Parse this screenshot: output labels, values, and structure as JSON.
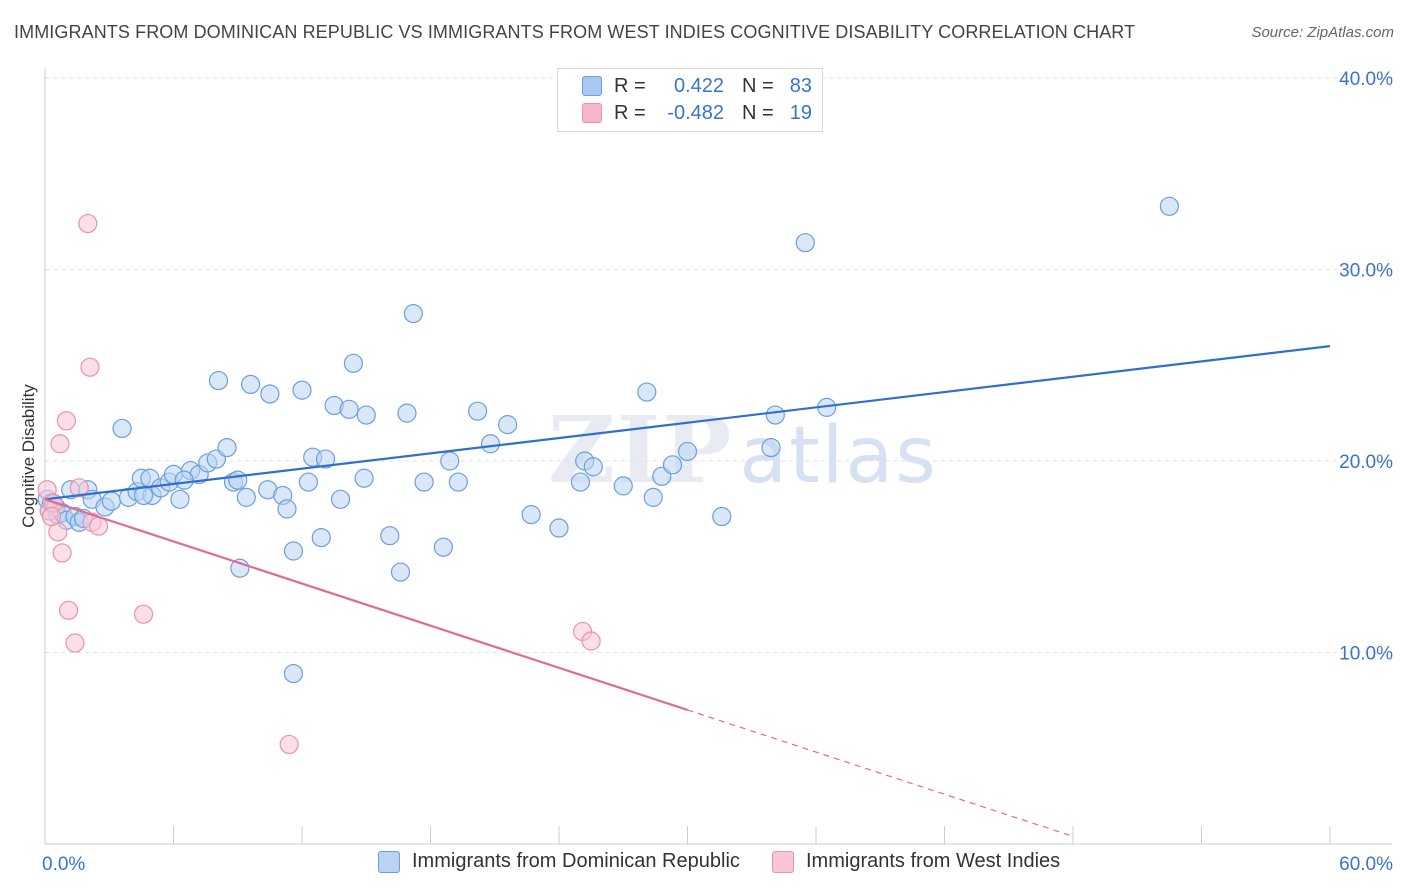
{
  "title": "IMMIGRANTS FROM DOMINICAN REPUBLIC VS IMMIGRANTS FROM WEST INDIES COGNITIVE DISABILITY CORRELATION CHART",
  "source": "Source: ZipAtlas.com",
  "watermark": {
    "zip": "ZIP",
    "atlas": "atlas"
  },
  "legend": {
    "rows": [
      {
        "r_label": "R =",
        "r_value": "0.422",
        "n_label": "N =",
        "n_value": "83",
        "color": "#a8c8f0"
      },
      {
        "r_label": "R =",
        "r_value": "-0.482",
        "n_label": "N =",
        "n_value": "19",
        "color": "#f7b8cb"
      }
    ]
  },
  "chart_data": {
    "type": "scatter",
    "title": "IMMIGRANTS FROM DOMINICAN REPUBLIC VS IMMIGRANTS FROM WEST INDIES COGNITIVE DISABILITY CORRELATION CHART",
    "xlabel": "",
    "ylabel": "Cognitive Disability",
    "xlim": [
      0,
      60
    ],
    "ylim": [
      0,
      40
    ],
    "x_tick_labels": [
      "0.0%",
      "60.0%"
    ],
    "y_tick_labels": [
      "10.0%",
      "20.0%",
      "30.0%",
      "40.0%"
    ],
    "y_ticks": [
      10,
      20,
      30,
      40
    ],
    "grid": true,
    "legend_position": "bottom",
    "series": [
      {
        "name": "Immigrants from Dominican Republic",
        "color": "#6a9fe0",
        "fill": "#b9d3f3",
        "trend": {
          "x": [
            0,
            60
          ],
          "y": [
            18.0,
            26.0
          ],
          "color": "#2f6fd0"
        },
        "points": [
          [
            0.1,
            18.0
          ],
          [
            0.2,
            17.4
          ],
          [
            0.3,
            17.8
          ],
          [
            0.5,
            17.6
          ],
          [
            0.6,
            17.2
          ],
          [
            0.8,
            17.3
          ],
          [
            1.0,
            16.9
          ],
          [
            1.2,
            18.5
          ],
          [
            1.4,
            17.1
          ],
          [
            1.6,
            16.8
          ],
          [
            2.0,
            18.5
          ],
          [
            2.2,
            18.0
          ],
          [
            2.8,
            17.6
          ],
          [
            3.1,
            17.9
          ],
          [
            3.6,
            21.7
          ],
          [
            3.9,
            18.1
          ],
          [
            4.3,
            18.4
          ],
          [
            4.5,
            19.1
          ],
          [
            4.9,
            19.1
          ],
          [
            5.0,
            18.2
          ],
          [
            5.4,
            18.6
          ],
          [
            5.8,
            18.9
          ],
          [
            6.0,
            19.3
          ],
          [
            6.3,
            18.0
          ],
          [
            6.8,
            19.5
          ],
          [
            7.2,
            19.3
          ],
          [
            7.6,
            19.9
          ],
          [
            8.0,
            20.1
          ],
          [
            8.1,
            24.2
          ],
          [
            8.5,
            20.7
          ],
          [
            8.8,
            18.9
          ],
          [
            9.0,
            19.0
          ],
          [
            9.1,
            14.4
          ],
          [
            9.4,
            18.1
          ],
          [
            9.6,
            24.0
          ],
          [
            10.4,
            18.5
          ],
          [
            10.5,
            23.5
          ],
          [
            11.1,
            18.2
          ],
          [
            11.3,
            17.5
          ],
          [
            11.6,
            15.3
          ],
          [
            12.0,
            23.7
          ],
          [
            12.3,
            18.9
          ],
          [
            12.5,
            20.2
          ],
          [
            12.9,
            16.0
          ],
          [
            13.1,
            20.1
          ],
          [
            13.5,
            22.9
          ],
          [
            13.8,
            18.0
          ],
          [
            14.2,
            22.7
          ],
          [
            14.4,
            25.1
          ],
          [
            14.9,
            19.1
          ],
          [
            15.0,
            22.4
          ],
          [
            16.1,
            16.1
          ],
          [
            16.6,
            14.2
          ],
          [
            16.9,
            22.5
          ],
          [
            17.2,
            27.7
          ],
          [
            17.7,
            18.9
          ],
          [
            18.6,
            15.5
          ],
          [
            18.9,
            20.0
          ],
          [
            19.3,
            18.9
          ],
          [
            20.2,
            22.6
          ],
          [
            20.8,
            20.9
          ],
          [
            21.6,
            21.9
          ],
          [
            22.7,
            17.2
          ],
          [
            24.0,
            16.5
          ],
          [
            25.0,
            18.9
          ],
          [
            25.2,
            20.0
          ],
          [
            25.6,
            19.7
          ],
          [
            27.0,
            18.7
          ],
          [
            28.1,
            23.6
          ],
          [
            28.4,
            18.1
          ],
          [
            28.8,
            19.2
          ],
          [
            29.3,
            19.8
          ],
          [
            30.0,
            20.5
          ],
          [
            31.6,
            17.1
          ],
          [
            33.9,
            20.7
          ],
          [
            34.1,
            22.4
          ],
          [
            35.5,
            31.4
          ],
          [
            36.5,
            22.8
          ],
          [
            52.5,
            33.3
          ],
          [
            11.6,
            8.9
          ],
          [
            4.6,
            18.2
          ],
          [
            1.8,
            17.0
          ],
          [
            6.5,
            19.0
          ]
        ]
      },
      {
        "name": "Immigrants from West Indies",
        "color": "#ee8fad",
        "fill": "#f9c6d6",
        "trend": {
          "x": [
            0,
            30
          ],
          "y": [
            18.0,
            7.0
          ],
          "dashed_to": {
            "x": 48,
            "y": 0.4
          },
          "color": "#e46996"
        },
        "points": [
          [
            0.1,
            18.5
          ],
          [
            0.2,
            17.4
          ],
          [
            0.4,
            17.8
          ],
          [
            0.6,
            16.3
          ],
          [
            0.7,
            20.9
          ],
          [
            0.8,
            15.2
          ],
          [
            1.0,
            22.1
          ],
          [
            1.1,
            12.2
          ],
          [
            1.4,
            10.5
          ],
          [
            1.6,
            18.6
          ],
          [
            2.0,
            32.4
          ],
          [
            2.1,
            24.9
          ],
          [
            2.2,
            16.8
          ],
          [
            2.5,
            16.6
          ],
          [
            4.6,
            12.0
          ],
          [
            25.1,
            11.1
          ],
          [
            25.5,
            10.6
          ],
          [
            11.4,
            5.2
          ],
          [
            0.3,
            17.1
          ]
        ]
      }
    ]
  },
  "bottom_legend": [
    {
      "label": "Immigrants from Dominican Republic",
      "color": "#b9d3f3",
      "border": "#6a9fe0"
    },
    {
      "label": "Immigrants from West Indies",
      "color": "#f9c6d6",
      "border": "#ee8fad"
    }
  ]
}
